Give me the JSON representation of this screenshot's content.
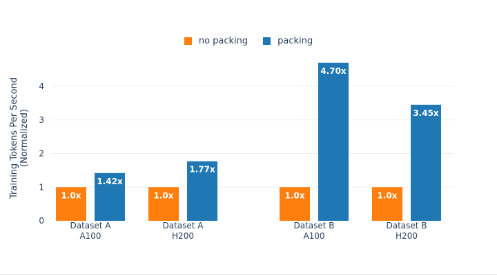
{
  "chart_data": {
    "type": "bar",
    "title": "",
    "xlabel": "",
    "ylabel_lines": [
      "Training Tokens Per Second",
      "(Normalized)"
    ],
    "ylim": [
      0,
      5
    ],
    "yticks": [
      0,
      1,
      2,
      3,
      4
    ],
    "groups": [
      {
        "label_line1": "Dataset A",
        "label_line2": "A100"
      },
      {
        "label_line1": "Dataset A",
        "label_line2": "H200"
      },
      {
        "label_line1": "Dataset B",
        "label_line2": "A100"
      },
      {
        "label_line1": "Dataset B",
        "label_line2": "H200"
      }
    ],
    "series": [
      {
        "name": "no packing",
        "color": "#ff7f0e",
        "values": [
          1.0,
          1.0,
          1.0,
          1.0
        ],
        "labels": [
          "1.0x",
          "1.0x",
          "1.0x",
          "1.0x"
        ]
      },
      {
        "name": "packing",
        "color": "#1f77b4",
        "values": [
          1.42,
          1.77,
          4.7,
          3.45
        ],
        "labels": [
          "1.42x",
          "1.77x",
          "4.70x",
          "3.45x"
        ]
      }
    ],
    "legend_position": "top-center",
    "grid": true
  }
}
